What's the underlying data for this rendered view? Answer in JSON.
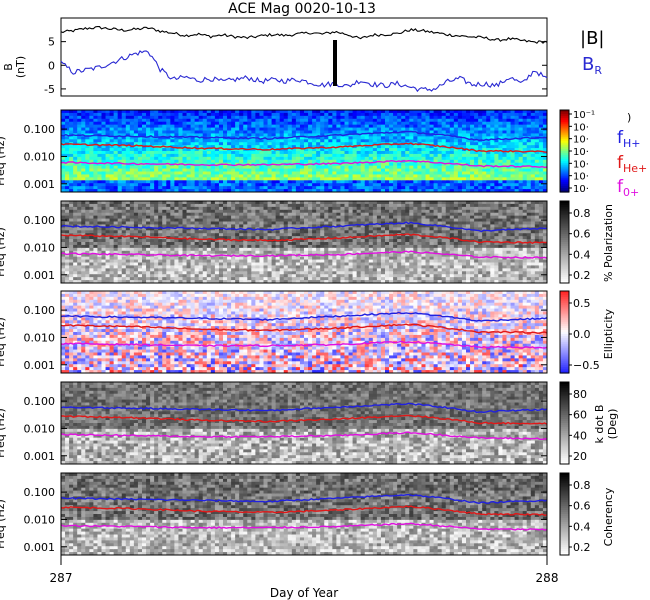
{
  "chart_data": [
    {
      "type": "line",
      "title": "ACE Mag 0020-10-13",
      "ylabel": "B",
      "yunit": "(nT)",
      "ylim": [
        -6.5,
        10
      ],
      "yticks": [
        -5,
        0,
        5
      ],
      "x_range": [
        287,
        288
      ],
      "series": [
        {
          "name": "|B|",
          "color": "#000000",
          "values": [
            7.0,
            7.3,
            7.8,
            8.0,
            7.7,
            7.4,
            7.6,
            7.9,
            7.2,
            6.8,
            6.3,
            6.6,
            6.1,
            6.4,
            6.0,
            5.8,
            6.2,
            6.5,
            6.3,
            6.6,
            6.9,
            6.6,
            7.1,
            6.5,
            5.6,
            6.4,
            6.5,
            6.7,
            7.5,
            7.3,
            6.9,
            6.5,
            6.2,
            6.0,
            5.8,
            5.3,
            5.6,
            5.2,
            4.9,
            5.0
          ]
        },
        {
          "name": "B",
          "subscript": "R",
          "color": "#2a2ad2",
          "values": [
            0.5,
            -1.5,
            -1.0,
            -0.5,
            0.5,
            1.5,
            2.5,
            3.0,
            -1.0,
            -3.0,
            -2.5,
            -3.2,
            -2.8,
            -3.5,
            -3.0,
            -2.6,
            -3.4,
            -3.1,
            -3.3,
            -3.0,
            -3.6,
            -4.2,
            -3.8,
            -4.5,
            -3.2,
            -4.0,
            -4.3,
            -3.9,
            -4.6,
            -5.2,
            -5.0,
            -3.5,
            -2.8,
            -4.1,
            -3.9,
            -4.3,
            -2.5,
            -4.0,
            -1.0,
            -3.0
          ]
        }
      ]
    },
    {
      "type": "heatmap",
      "ylabel": "Freq (Hz)",
      "ylim": [
        0.0005,
        0.5
      ],
      "yticks": [
        "0.001",
        "0.010",
        "0.100"
      ],
      "colorbar_ticks": [
        "10⁻¹",
        "10·",
        "10·",
        "10·",
        "10·",
        "10·",
        "10·"
      ],
      "colorbar_label": ")",
      "series": [
        {
          "name": "f",
          "subscript": "H+",
          "color": "#2020e0",
          "level": [
            0.06,
            0.055,
            0.05,
            0.045,
            0.06,
            0.08,
            0.04,
            0.05
          ]
        },
        {
          "name": "f",
          "subscript": "He+",
          "color": "#e01818",
          "level": [
            0.028,
            0.025,
            0.02,
            0.018,
            0.022,
            0.03,
            0.016,
            0.015
          ]
        },
        {
          "name": "f",
          "subscript": "0+",
          "color": "#e010e0",
          "level": [
            0.006,
            0.0055,
            0.005,
            0.005,
            0.0055,
            0.007,
            0.0045,
            0.0042
          ]
        }
      ]
    },
    {
      "type": "heatmap",
      "ylabel": "Freq (Hz)",
      "yticks": [
        "0.001",
        "0.010",
        "0.100"
      ],
      "colorbar_label": "% Polarization",
      "colorbar_ticks": [
        "0.2",
        "0.4",
        "0.6",
        "0.8"
      ],
      "series_refs": [
        "f_H+",
        "f_He+",
        "f_0+"
      ]
    },
    {
      "type": "heatmap",
      "ylabel": "Freq (Hz)",
      "yticks": [
        "0.001",
        "0.010",
        "0.100"
      ],
      "colorbar_label": "Ellipticity",
      "colorbar_ticks": [
        "−0.5",
        "0.0",
        "0.5"
      ],
      "series_refs": [
        "f_H+",
        "f_He+",
        "f_0+"
      ]
    },
    {
      "type": "heatmap",
      "ylabel": "Freq (Hz)",
      "yticks": [
        "0.001",
        "0.010",
        "0.100"
      ],
      "colorbar_label": "k dot B",
      "colorbar_unit": "(Deg)",
      "colorbar_ticks": [
        "20",
        "40",
        "60",
        "80"
      ],
      "series_refs": [
        "f_H+",
        "f_He+",
        "f_0+"
      ]
    },
    {
      "type": "heatmap",
      "ylabel": "Freq (Hz)",
      "yticks": [
        "0.001",
        "0.010",
        "0.100"
      ],
      "colorbar_label": "Coherency",
      "colorbar_ticks": [
        "0.2",
        "0.4",
        "0.6",
        "0.8"
      ],
      "series_refs": [
        "f_H+",
        "f_He+",
        "f_0+"
      ]
    }
  ],
  "xaxis": {
    "label": "Day of Year",
    "ticks": [
      "287",
      "288"
    ]
  },
  "legend": {
    "b_total": "|B|",
    "br_main": "B",
    "br_sub": "R",
    "f_main": "f",
    "h_sub": "H+",
    "he_sub": "He+",
    "o_sub": "0+"
  },
  "colors": {
    "black": "#000000",
    "blue": "#2a2ad2",
    "red": "#e01818",
    "magenta": "#e010e0"
  }
}
